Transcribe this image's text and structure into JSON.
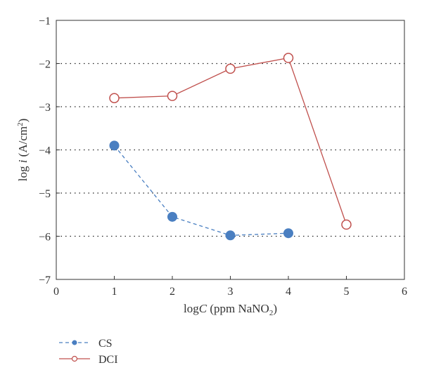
{
  "chart_data": {
    "type": "line",
    "xlabel": {
      "main": "log",
      "var": "C",
      "unit_pre": " (ppm NaNO",
      "sub": "2",
      "unit_post": ")"
    },
    "ylabel": {
      "main": "log ",
      "var": "i",
      "unit_pre": " (A/cm",
      "sup": "2",
      "unit_post": ")"
    },
    "xlim": [
      0,
      6
    ],
    "ylim": [
      -7,
      -1
    ],
    "x_ticks": [
      0,
      1,
      2,
      3,
      4,
      5,
      6
    ],
    "y_ticks": [
      -7,
      -6,
      -5,
      -4,
      -3,
      -2,
      -1
    ],
    "x_tick_labels": [
      "0",
      "1",
      "2",
      "3",
      "4",
      "5",
      "6"
    ],
    "y_tick_labels": [
      "−7",
      "−6",
      "−5",
      "−4",
      "−3",
      "−2",
      "−1"
    ],
    "grid": "horizontal dotted",
    "legend_position": "bottom-left, outside plot",
    "series": [
      {
        "name": "CS",
        "color": "#4a7fc1",
        "line_style": "dashed",
        "marker": "filled circle",
        "x": [
          1,
          2,
          3,
          4
        ],
        "y": [
          -3.9,
          -5.55,
          -5.98,
          -5.93
        ]
      },
      {
        "name": "DCI",
        "color": "#c0504d",
        "line_style": "solid",
        "marker": "open circle",
        "x": [
          1,
          2,
          3,
          4,
          5
        ],
        "y": [
          -2.8,
          -2.75,
          -2.12,
          -1.87,
          -5.73
        ]
      }
    ]
  }
}
